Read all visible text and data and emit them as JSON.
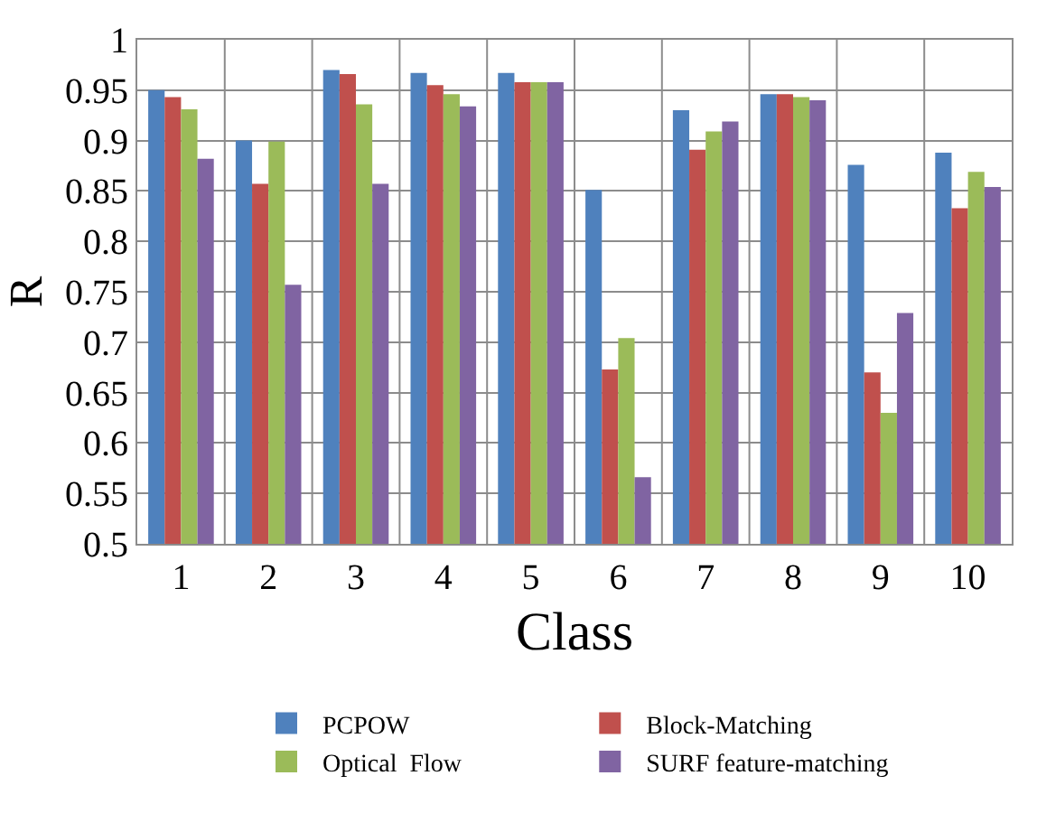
{
  "chart_data": {
    "type": "bar",
    "xlabel": "Class",
    "ylabel": "R",
    "categories": [
      "1",
      "2",
      "3",
      "4",
      "5",
      "6",
      "7",
      "8",
      "9",
      "10"
    ],
    "series": [
      {
        "name": "PCPOW",
        "color": "#4f81bd",
        "values": [
          0.95,
          0.9,
          0.97,
          0.967,
          0.967,
          0.851,
          0.93,
          0.946,
          0.876,
          0.888
        ]
      },
      {
        "name": "Block-Matching",
        "color": "#c0504d",
        "values": [
          0.943,
          0.857,
          0.966,
          0.955,
          0.958,
          0.673,
          0.891,
          0.946,
          0.67,
          0.833
        ]
      },
      {
        "name": "Optical  Flow",
        "color": "#9bbb59",
        "values": [
          0.931,
          0.899,
          0.936,
          0.946,
          0.958,
          0.704,
          0.909,
          0.943,
          0.63,
          0.869
        ]
      },
      {
        "name": "SURF feature-matching",
        "color": "#8064a2",
        "values": [
          0.882,
          0.757,
          0.857,
          0.934,
          0.958,
          0.566,
          0.919,
          0.94,
          0.729,
          0.854
        ]
      }
    ],
    "ylim": [
      0.5,
      1
    ],
    "yticks": [
      0.5,
      0.55,
      0.6,
      0.65,
      0.7,
      0.75,
      0.8,
      0.85,
      0.9,
      0.95,
      1
    ],
    "grid": true,
    "legend": "bottom"
  }
}
